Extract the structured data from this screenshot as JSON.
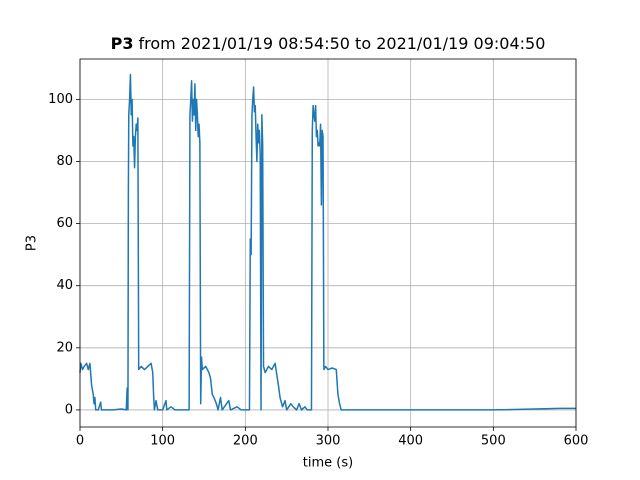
{
  "chart_data": {
    "type": "line",
    "title": {
      "bold": "P3",
      "rest": "from 2021/01/19 08:54:50 to 2021/01/19 09:04:50"
    },
    "xlabel": "time (s)",
    "ylabel": "P3",
    "color": "#1f77b4",
    "grid": true,
    "xlim": [
      0,
      600
    ],
    "xticks": [
      0,
      100,
      200,
      300,
      400,
      500,
      600
    ],
    "ylim": [
      -5.5,
      113
    ],
    "yticks": [
      0,
      20,
      40,
      60,
      80,
      100
    ],
    "x": [
      0,
      1,
      3,
      5,
      8,
      10,
      12,
      14,
      16,
      17,
      18,
      19,
      22,
      25,
      26,
      40,
      50,
      56,
      57,
      58,
      58.5,
      59,
      60,
      61,
      62,
      63,
      64,
      65,
      66,
      67,
      68,
      69,
      70,
      71,
      74,
      78,
      82,
      86,
      88,
      89,
      90,
      92,
      94,
      100,
      104,
      105,
      110,
      115,
      125,
      132,
      133,
      134,
      135,
      136,
      137,
      138,
      139,
      140,
      141,
      142,
      143,
      144,
      145,
      146,
      147,
      148,
      152,
      156,
      158,
      160,
      162,
      165,
      167,
      170,
      172,
      180,
      182,
      190,
      195,
      205,
      206,
      207,
      208,
      209,
      210,
      211,
      212,
      213,
      214,
      215,
      216,
      217,
      218,
      219,
      220,
      221,
      222,
      224,
      228,
      232,
      236,
      240,
      242,
      245,
      248,
      250,
      255,
      258,
      262,
      265,
      268,
      272,
      275,
      280,
      281,
      282,
      283,
      284,
      285,
      286,
      287,
      288,
      289,
      290,
      291,
      292,
      293,
      294,
      295,
      297,
      300,
      305,
      310,
      312,
      314,
      316,
      320,
      350,
      400,
      450,
      500,
      550,
      580,
      600
    ],
    "values": [
      12,
      15,
      13,
      14,
      15,
      13,
      15,
      8,
      5,
      2,
      4,
      0,
      0,
      2.5,
      0,
      0,
      0.3,
      0,
      7,
      0,
      70,
      95,
      100,
      108,
      95,
      100,
      85,
      88,
      78,
      88,
      92,
      90,
      94,
      13,
      14,
      13,
      14,
      15,
      12,
      5,
      0,
      3,
      0,
      0,
      3,
      0,
      1,
      0,
      0,
      0,
      95,
      100,
      106,
      93,
      100,
      95,
      105,
      90,
      100,
      95,
      88,
      92,
      86,
      2,
      17,
      13,
      14,
      12,
      10,
      5,
      4,
      2,
      0,
      4,
      0,
      3,
      0,
      1,
      0,
      0,
      55,
      50,
      95,
      100,
      104,
      96,
      98,
      88,
      80,
      92,
      86,
      90,
      82,
      0,
      95,
      85,
      14,
      12,
      14,
      13,
      15,
      8,
      4,
      1,
      3,
      0,
      2,
      1,
      0,
      2,
      0,
      1,
      0,
      0,
      90,
      98,
      95,
      93,
      98,
      88,
      90,
      85,
      86,
      85,
      92,
      66,
      90,
      88,
      13,
      14,
      13,
      13.5,
      13,
      5,
      2,
      0,
      0,
      0,
      0,
      0,
      0,
      0.3,
      0.5,
      0.5
    ]
  }
}
